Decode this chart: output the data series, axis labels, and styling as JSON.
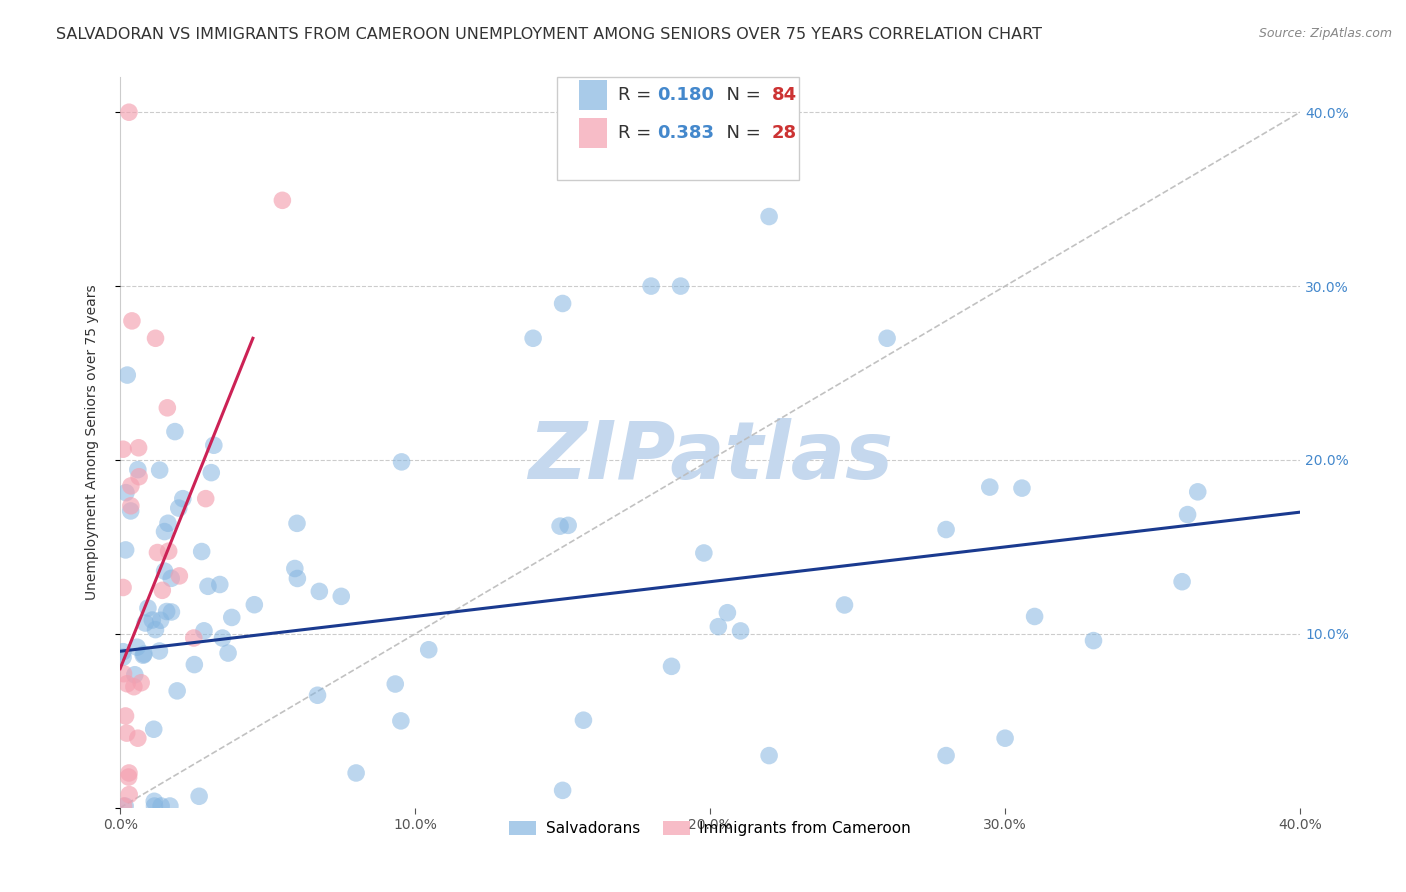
{
  "title": "SALVADORAN VS IMMIGRANTS FROM CAMEROON UNEMPLOYMENT AMONG SENIORS OVER 75 YEARS CORRELATION CHART",
  "source": "Source: ZipAtlas.com",
  "ylabel": "Unemployment Among Seniors over 75 years",
  "xlim": [
    0.0,
    0.4
  ],
  "ylim": [
    0.0,
    0.42
  ],
  "xticks": [
    0.0,
    0.1,
    0.2,
    0.3,
    0.4
  ],
  "yticks": [
    0.0,
    0.1,
    0.2,
    0.3,
    0.4
  ],
  "blue_color": "#85B5E0",
  "pink_color": "#F4A0B0",
  "blue_line_color": "#1A3A8F",
  "pink_line_color": "#CC2255",
  "diag_line_color": "#BBBBBB",
  "legend_R1": "0.180",
  "legend_N1": "84",
  "legend_R2": "0.383",
  "legend_N2": "28",
  "watermark": "ZIPatlas",
  "watermark_color": "#C5D8EE",
  "title_fontsize": 11.5,
  "axis_label_fontsize": 10,
  "tick_fontsize": 10,
  "source_fontsize": 9,
  "legend_value_color": "#4488CC",
  "legend_n_color": "#CC3333",
  "blue_trend": [
    0.0,
    0.4,
    0.09,
    0.17
  ],
  "pink_trend": [
    0.0,
    0.045,
    0.08,
    0.27
  ]
}
